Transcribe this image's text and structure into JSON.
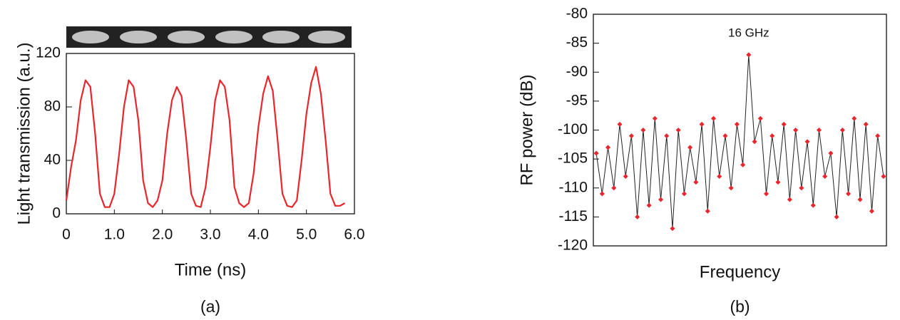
{
  "chart_data": [
    {
      "type": "line",
      "panel_label": "(a)",
      "ylabel": "Light transmission (a.u.)",
      "xlabel": "Time (ns)",
      "xlim": [
        0,
        6
      ],
      "xticks": [
        0,
        {
          "value": 1,
          "label": "1.0"
        },
        {
          "value": 2,
          "label": "2.0"
        },
        {
          "value": 3,
          "label": "3.0"
        },
        {
          "value": 4,
          "label": "4.0"
        },
        {
          "value": 5,
          "label": "5.0"
        },
        {
          "value": 6,
          "label": "6.0"
        }
      ],
      "ylim": [
        0,
        120
      ],
      "yticks": [
        0,
        40,
        80,
        120
      ],
      "color": "#e8262b",
      "x": [
        0.0,
        0.1,
        0.2,
        0.3,
        0.4,
        0.5,
        0.6,
        0.7,
        0.8,
        0.9,
        1.0,
        1.1,
        1.2,
        1.3,
        1.4,
        1.5,
        1.6,
        1.7,
        1.8,
        1.9,
        2.0,
        2.1,
        2.2,
        2.3,
        2.4,
        2.5,
        2.6,
        2.7,
        2.8,
        2.9,
        3.0,
        3.1,
        3.2,
        3.3,
        3.4,
        3.5,
        3.6,
        3.7,
        3.8,
        3.9,
        4.0,
        4.1,
        4.2,
        4.3,
        4.4,
        4.5,
        4.6,
        4.7,
        4.8,
        4.9,
        5.0,
        5.1,
        5.2,
        5.3,
        5.4,
        5.5,
        5.6,
        5.7,
        5.8
      ],
      "values": [
        10,
        35,
        55,
        85,
        100,
        95,
        60,
        15,
        5,
        5,
        15,
        45,
        80,
        100,
        95,
        70,
        25,
        8,
        5,
        10,
        25,
        60,
        85,
        95,
        88,
        55,
        15,
        6,
        5,
        20,
        50,
        85,
        100,
        95,
        70,
        20,
        8,
        5,
        8,
        30,
        65,
        90,
        103,
        92,
        55,
        15,
        6,
        5,
        10,
        40,
        75,
        98,
        110,
        90,
        55,
        15,
        6,
        6,
        8
      ]
    },
    {
      "type": "line",
      "panel_label": "(b)",
      "ylabel": "RF power (dB)",
      "xlabel": "Frequency",
      "annotation": "16 GHz",
      "ylim": [
        -120,
        -80
      ],
      "yticks": [
        -120,
        -115,
        -110,
        -105,
        -100,
        -95,
        -90,
        -85,
        -80
      ],
      "color": "#222222",
      "marker_color": "#e8262b",
      "values": [
        -104,
        -111,
        -103,
        -110,
        -99,
        -108,
        -101,
        -115,
        -100,
        -113,
        -98,
        -112,
        -101,
        -117,
        -100,
        -111,
        -103,
        -109,
        -99,
        -114,
        -98,
        -108,
        -101,
        -110,
        -99,
        -106,
        -87,
        -102,
        -98,
        -111,
        -101,
        -109,
        -99,
        -112,
        -100,
        -110,
        -102,
        -113,
        -100,
        -108,
        -104,
        -115,
        -100,
        -111,
        -98,
        -112,
        -99,
        -114,
        -101,
        -108
      ]
    }
  ]
}
